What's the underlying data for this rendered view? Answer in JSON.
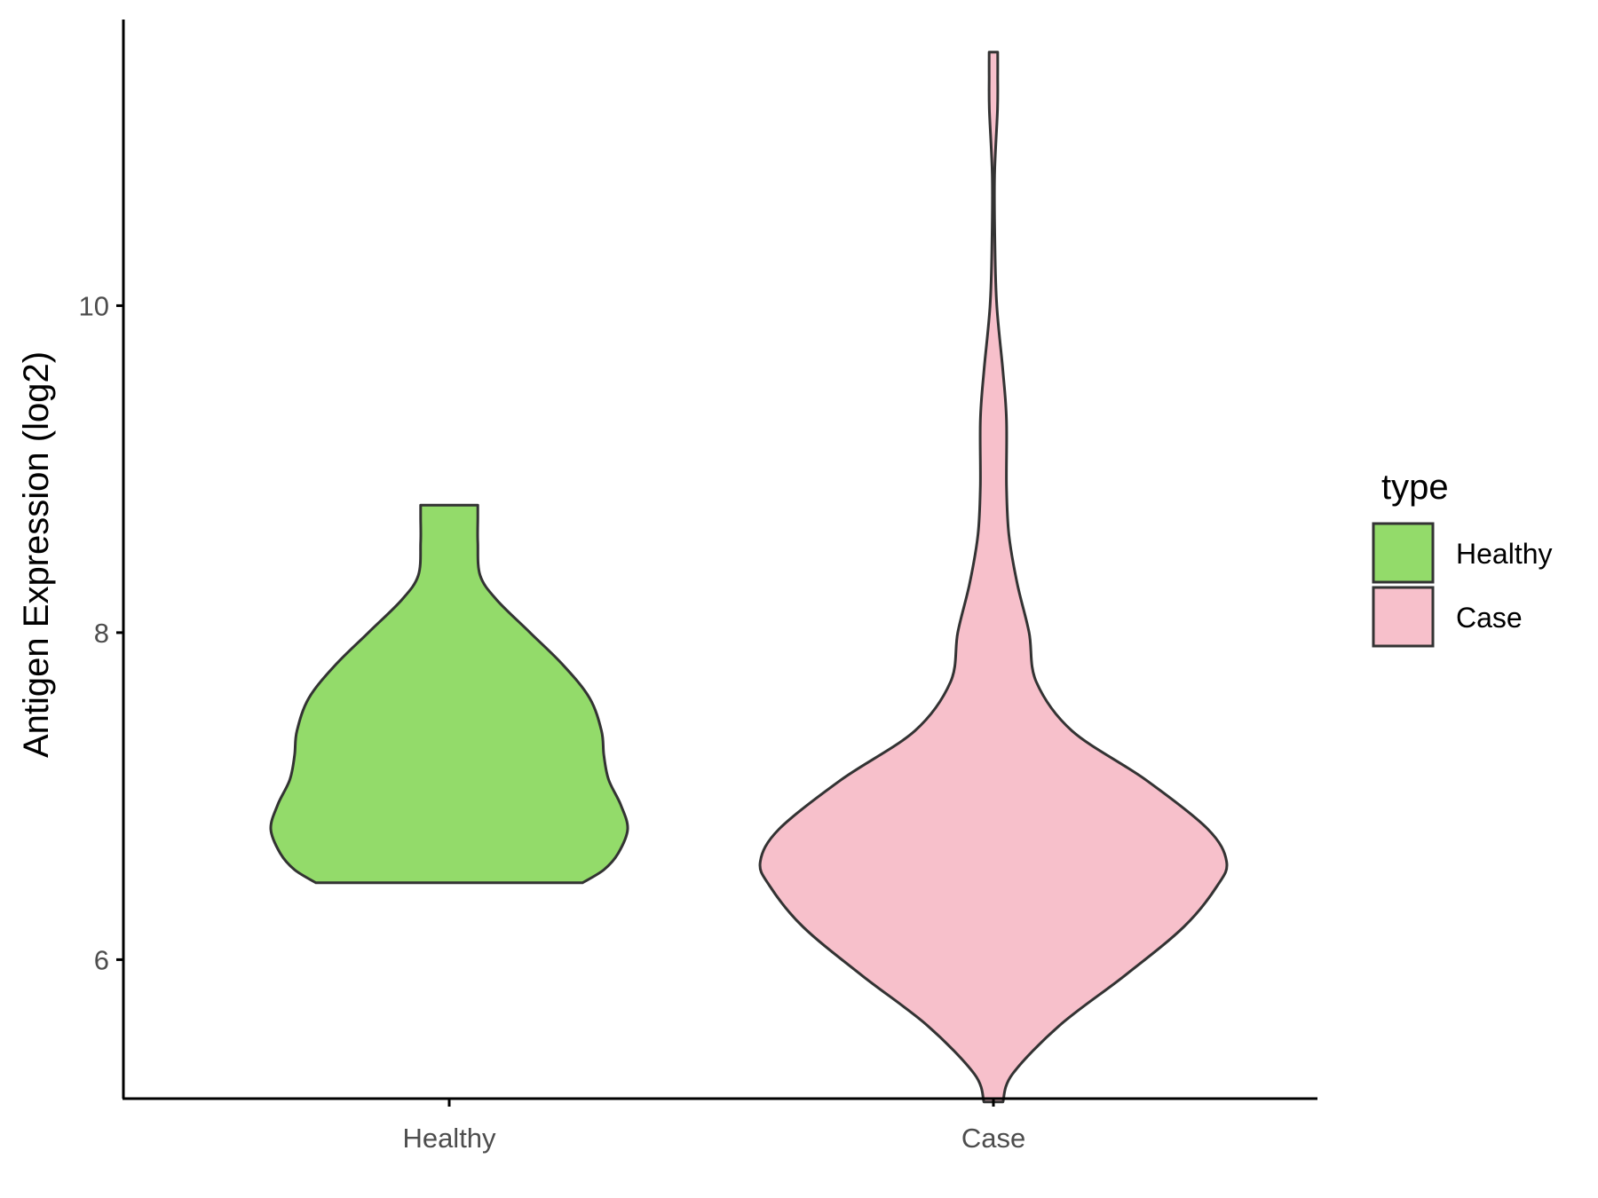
{
  "chart_data": {
    "type": "violin",
    "title": "",
    "xlabel": "",
    "ylabel": "Antigen Expression (log2)",
    "ylim": [
      5.15,
      11.75
    ],
    "yticks": [
      6,
      8,
      10
    ],
    "categories": [
      "Healthy",
      "Case"
    ],
    "grid": false,
    "legend": {
      "title": "type",
      "position": "right",
      "entries": [
        "Healthy",
        "Case"
      ]
    },
    "colors": {
      "Healthy": "#93DB6A",
      "Case": "#F7C0CB",
      "outline": "#333333"
    },
    "violins": [
      {
        "name": "Healthy",
        "min": 6.47,
        "max": 8.78,
        "density": [
          [
            6.47,
            0.56
          ],
          [
            6.55,
            0.65
          ],
          [
            6.65,
            0.71
          ],
          [
            6.8,
            0.75
          ],
          [
            6.95,
            0.72
          ],
          [
            7.1,
            0.67
          ],
          [
            7.25,
            0.65
          ],
          [
            7.4,
            0.64
          ],
          [
            7.6,
            0.59
          ],
          [
            7.8,
            0.48
          ],
          [
            8.0,
            0.34
          ],
          [
            8.2,
            0.2
          ],
          [
            8.35,
            0.13
          ],
          [
            8.55,
            0.12
          ],
          [
            8.7,
            0.12
          ],
          [
            8.78,
            0.12
          ]
        ]
      },
      {
        "name": "Case",
        "min": 5.13,
        "max": 11.55,
        "density": [
          [
            5.13,
            0.04
          ],
          [
            5.3,
            0.08
          ],
          [
            5.6,
            0.28
          ],
          [
            5.9,
            0.55
          ],
          [
            6.2,
            0.8
          ],
          [
            6.45,
            0.94
          ],
          [
            6.6,
            0.98
          ],
          [
            6.8,
            0.9
          ],
          [
            7.1,
            0.64
          ],
          [
            7.4,
            0.33
          ],
          [
            7.7,
            0.18
          ],
          [
            8.0,
            0.15
          ],
          [
            8.3,
            0.1
          ],
          [
            8.6,
            0.065
          ],
          [
            8.9,
            0.055
          ],
          [
            9.3,
            0.055
          ],
          [
            9.6,
            0.04
          ],
          [
            10.0,
            0.014
          ],
          [
            10.4,
            0.006
          ],
          [
            10.8,
            0.005
          ],
          [
            11.2,
            0.017
          ],
          [
            11.4,
            0.018
          ],
          [
            11.55,
            0.018
          ]
        ]
      }
    ]
  }
}
